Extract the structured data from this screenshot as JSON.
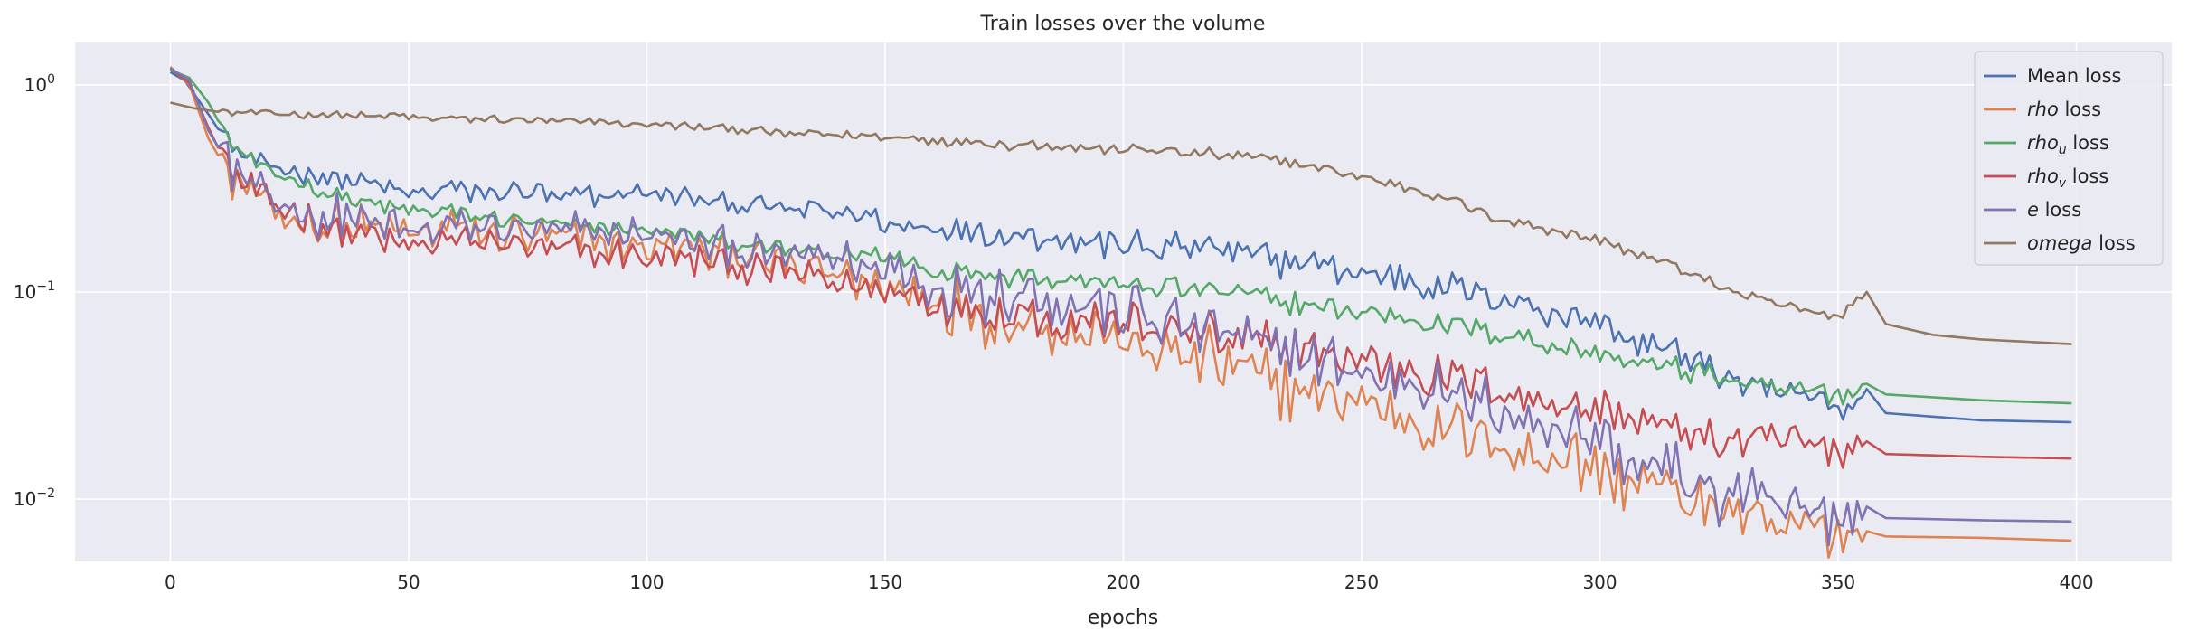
{
  "chart_data": {
    "type": "line",
    "title": "Train losses over the volume",
    "xlabel": "epochs",
    "ylabel": "",
    "yscale": "log",
    "xlim": [
      -20,
      420
    ],
    "ylim": [
      0.005,
      1.6
    ],
    "xticks": [
      0,
      50,
      100,
      150,
      200,
      250,
      300,
      350,
      400
    ],
    "yticks": [
      {
        "value": 1,
        "base": "10",
        "exp": "0"
      },
      {
        "value": 0.1,
        "base": "10",
        "exp": "−1"
      },
      {
        "value": 0.01,
        "base": "10",
        "exp": "−2"
      }
    ],
    "grid": true,
    "legend_position": "top-right",
    "series": [
      {
        "name": "Mean loss",
        "legend": {
          "sym": "",
          "sub": "",
          "rest": "Mean loss"
        },
        "color": "#4c72b0",
        "anchors": [
          [
            0,
            1.15
          ],
          [
            3,
            1.05
          ],
          [
            8,
            0.72
          ],
          [
            12,
            0.52
          ],
          [
            16,
            0.45
          ],
          [
            20,
            0.4
          ],
          [
            30,
            0.37
          ],
          [
            40,
            0.33
          ],
          [
            50,
            0.3
          ],
          [
            60,
            0.31
          ],
          [
            80,
            0.29
          ],
          [
            100,
            0.3
          ],
          [
            120,
            0.26
          ],
          [
            140,
            0.24
          ],
          [
            150,
            0.22
          ],
          [
            160,
            0.21
          ],
          [
            180,
            0.19
          ],
          [
            200,
            0.17
          ],
          [
            220,
            0.16
          ],
          [
            240,
            0.135
          ],
          [
            260,
            0.115
          ],
          [
            280,
            0.095
          ],
          [
            300,
            0.068
          ],
          [
            320,
            0.046
          ],
          [
            330,
            0.036
          ],
          [
            340,
            0.031
          ],
          [
            350,
            0.029
          ],
          [
            354,
            0.029
          ],
          [
            356,
            0.034
          ],
          [
            360,
            0.026
          ],
          [
            380,
            0.024
          ],
          [
            399,
            0.0235
          ]
        ],
        "noise": 0.2,
        "noise_until": 356
      },
      {
        "name": "rho loss",
        "legend": {
          "sym": "rho",
          "sub": "",
          "rest": " loss"
        },
        "color": "#dd8452",
        "anchors": [
          [
            0,
            1.22
          ],
          [
            4,
            1.0
          ],
          [
            8,
            0.55
          ],
          [
            12,
            0.38
          ],
          [
            16,
            0.3
          ],
          [
            20,
            0.26
          ],
          [
            30,
            0.22
          ],
          [
            40,
            0.2
          ],
          [
            50,
            0.19
          ],
          [
            60,
            0.2
          ],
          [
            80,
            0.18
          ],
          [
            100,
            0.17
          ],
          [
            120,
            0.15
          ],
          [
            140,
            0.12
          ],
          [
            150,
            0.11
          ],
          [
            160,
            0.09
          ],
          [
            180,
            0.075
          ],
          [
            200,
            0.06
          ],
          [
            220,
            0.045
          ],
          [
            240,
            0.033
          ],
          [
            260,
            0.025
          ],
          [
            280,
            0.018
          ],
          [
            300,
            0.014
          ],
          [
            310,
            0.011
          ],
          [
            320,
            0.0095
          ],
          [
            330,
            0.0078
          ],
          [
            340,
            0.0072
          ],
          [
            350,
            0.0068
          ],
          [
            356,
            0.007
          ],
          [
            360,
            0.0066
          ],
          [
            380,
            0.0065
          ],
          [
            399,
            0.0063
          ]
        ],
        "noise": 0.38,
        "noise_until": 356
      },
      {
        "name": "rhou loss",
        "legend": {
          "sym": "rho",
          "sub": "u",
          "rest": " loss"
        },
        "color": "#55a868",
        "anchors": [
          [
            0,
            1.18
          ],
          [
            4,
            1.08
          ],
          [
            8,
            0.82
          ],
          [
            12,
            0.55
          ],
          [
            16,
            0.45
          ],
          [
            20,
            0.38
          ],
          [
            30,
            0.32
          ],
          [
            40,
            0.27
          ],
          [
            50,
            0.25
          ],
          [
            60,
            0.24
          ],
          [
            80,
            0.21
          ],
          [
            100,
            0.2
          ],
          [
            120,
            0.17
          ],
          [
            140,
            0.15
          ],
          [
            150,
            0.15
          ],
          [
            160,
            0.13
          ],
          [
            180,
            0.12
          ],
          [
            200,
            0.11
          ],
          [
            220,
            0.1
          ],
          [
            240,
            0.085
          ],
          [
            260,
            0.075
          ],
          [
            280,
            0.062
          ],
          [
            300,
            0.05
          ],
          [
            320,
            0.041
          ],
          [
            330,
            0.036
          ],
          [
            340,
            0.034
          ],
          [
            350,
            0.033
          ],
          [
            354,
            0.033
          ],
          [
            356,
            0.036
          ],
          [
            360,
            0.032
          ],
          [
            380,
            0.03
          ],
          [
            399,
            0.029
          ]
        ],
        "noise": 0.14,
        "noise_until": 356
      },
      {
        "name": "rhov loss",
        "legend": {
          "sym": "rho",
          "sub": "v",
          "rest": " loss"
        },
        "color": "#c44e52",
        "anchors": [
          [
            0,
            1.2
          ],
          [
            4,
            1.02
          ],
          [
            8,
            0.62
          ],
          [
            12,
            0.4
          ],
          [
            16,
            0.32
          ],
          [
            20,
            0.27
          ],
          [
            30,
            0.22
          ],
          [
            40,
            0.19
          ],
          [
            50,
            0.17
          ],
          [
            60,
            0.18
          ],
          [
            80,
            0.16
          ],
          [
            100,
            0.15
          ],
          [
            120,
            0.13
          ],
          [
            140,
            0.11
          ],
          [
            150,
            0.1
          ],
          [
            160,
            0.09
          ],
          [
            180,
            0.08
          ],
          [
            200,
            0.07
          ],
          [
            220,
            0.06
          ],
          [
            240,
            0.05
          ],
          [
            260,
            0.042
          ],
          [
            280,
            0.033
          ],
          [
            300,
            0.026
          ],
          [
            320,
            0.021
          ],
          [
            330,
            0.019
          ],
          [
            340,
            0.018
          ],
          [
            350,
            0.017
          ],
          [
            354,
            0.017
          ],
          [
            356,
            0.019
          ],
          [
            360,
            0.0165
          ],
          [
            380,
            0.016
          ],
          [
            399,
            0.0157
          ]
        ],
        "noise": 0.28,
        "noise_until": 356
      },
      {
        "name": "e loss",
        "legend": {
          "sym": "e",
          "sub": "",
          "rest": " loss"
        },
        "color": "#8172b3",
        "anchors": [
          [
            0,
            1.2
          ],
          [
            4,
            1.05
          ],
          [
            8,
            0.6
          ],
          [
            12,
            0.42
          ],
          [
            16,
            0.33
          ],
          [
            20,
            0.28
          ],
          [
            30,
            0.24
          ],
          [
            40,
            0.22
          ],
          [
            50,
            0.2
          ],
          [
            60,
            0.21
          ],
          [
            80,
            0.19
          ],
          [
            100,
            0.19
          ],
          [
            120,
            0.16
          ],
          [
            140,
            0.14
          ],
          [
            150,
            0.13
          ],
          [
            160,
            0.11
          ],
          [
            180,
            0.095
          ],
          [
            200,
            0.08
          ],
          [
            220,
            0.063
          ],
          [
            240,
            0.048
          ],
          [
            260,
            0.036
          ],
          [
            280,
            0.026
          ],
          [
            300,
            0.019
          ],
          [
            310,
            0.015
          ],
          [
            320,
            0.012
          ],
          [
            330,
            0.0098
          ],
          [
            340,
            0.0088
          ],
          [
            350,
            0.0083
          ],
          [
            354,
            0.0082
          ],
          [
            356,
            0.0092
          ],
          [
            360,
            0.0081
          ],
          [
            380,
            0.0079
          ],
          [
            399,
            0.0078
          ]
        ],
        "noise": 0.36,
        "noise_until": 356
      },
      {
        "name": "omega loss",
        "legend": {
          "sym": "omega",
          "sub": "",
          "rest": " loss"
        },
        "color": "#937860",
        "anchors": [
          [
            0,
            0.82
          ],
          [
            5,
            0.77
          ],
          [
            10,
            0.74
          ],
          [
            30,
            0.72
          ],
          [
            60,
            0.69
          ],
          [
            90,
            0.66
          ],
          [
            110,
            0.63
          ],
          [
            130,
            0.58
          ],
          [
            150,
            0.56
          ],
          [
            170,
            0.53
          ],
          [
            190,
            0.5
          ],
          [
            210,
            0.48
          ],
          [
            230,
            0.44
          ],
          [
            250,
            0.36
          ],
          [
            260,
            0.32
          ],
          [
            270,
            0.27
          ],
          [
            280,
            0.22
          ],
          [
            290,
            0.2
          ],
          [
            300,
            0.18
          ],
          [
            305,
            0.16
          ],
          [
            310,
            0.15
          ],
          [
            320,
            0.12
          ],
          [
            330,
            0.095
          ],
          [
            340,
            0.083
          ],
          [
            350,
            0.075
          ],
          [
            354,
            0.092
          ],
          [
            356,
            0.1
          ],
          [
            360,
            0.07
          ],
          [
            370,
            0.062
          ],
          [
            380,
            0.059
          ],
          [
            399,
            0.056
          ]
        ],
        "noise": 0.07,
        "noise_until": 356
      }
    ]
  }
}
